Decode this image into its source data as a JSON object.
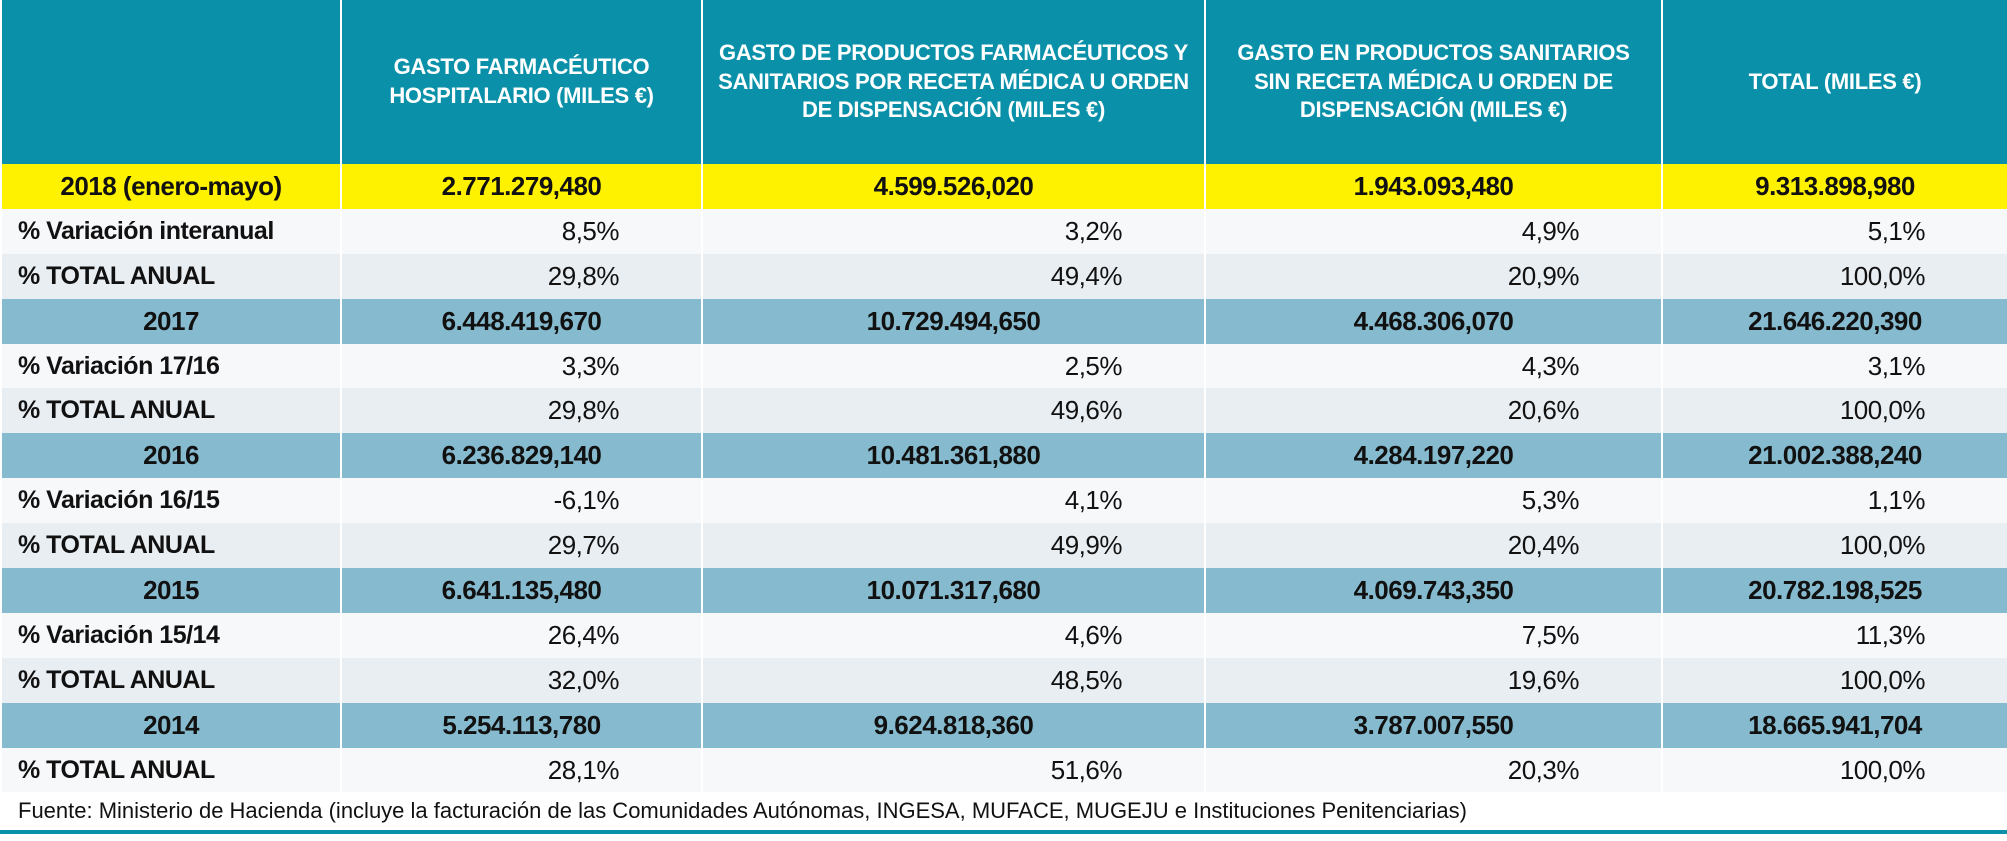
{
  "header": {
    "columns": [
      "GASTO FARMACÉUTICO HOSPITALARIO (MILES €)",
      "GASTO DE PRODUCTOS FARMACÉUTICOS Y SANITARIOS POR RECETA MÉDICA U ORDEN DE DISPENSACIÓN (MILES €)",
      "GASTO EN PRODUCTOS SANITARIOS SIN RECETA MÉDICA U ORDEN DE DISPENSACIÓN (MILES €)",
      "TOTAL (MILES €)"
    ]
  },
  "groups": [
    {
      "label": "2018 (enero-mayo)",
      "values": [
        "2.771.279,480",
        "4.599.526,020",
        "1.943.093,480",
        "9.313.898,980"
      ],
      "rows": [
        {
          "label": "% Variación interanual",
          "values": [
            "8,5%",
            "3,2%",
            "4,9%",
            "5,1%"
          ]
        },
        {
          "label": "% TOTAL ANUAL",
          "values": [
            "29,8%",
            "49,4%",
            "20,9%",
            "100,0%"
          ]
        }
      ]
    },
    {
      "label": "2017",
      "values": [
        "6.448.419,670",
        "10.729.494,650",
        "4.468.306,070",
        "21.646.220,390"
      ],
      "rows": [
        {
          "label": "% Variación 17/16",
          "values": [
            "3,3%",
            "2,5%",
            "4,3%",
            "3,1%"
          ]
        },
        {
          "label": "% TOTAL ANUAL",
          "values": [
            "29,8%",
            "49,6%",
            "20,6%",
            "100,0%"
          ]
        }
      ]
    },
    {
      "label": "2016",
      "values": [
        "6.236.829,140",
        "10.481.361,880",
        "4.284.197,220",
        "21.002.388,240"
      ],
      "rows": [
        {
          "label": "% Variación 16/15",
          "values": [
            "-6,1%",
            "4,1%",
            "5,3%",
            "1,1%"
          ]
        },
        {
          "label": "% TOTAL ANUAL",
          "values": [
            "29,7%",
            "49,9%",
            "20,4%",
            "100,0%"
          ]
        }
      ]
    },
    {
      "label": "2015",
      "values": [
        "6.641.135,480",
        "10.071.317,680",
        "4.069.743,350",
        "20.782.198,525"
      ],
      "rows": [
        {
          "label": "% Variación 15/14",
          "values": [
            "26,4%",
            "4,6%",
            "7,5%",
            "11,3%"
          ]
        },
        {
          "label": "% TOTAL ANUAL",
          "values": [
            "32,0%",
            "48,5%",
            "19,6%",
            "100,0%"
          ]
        }
      ]
    },
    {
      "label": "2014",
      "values": [
        "5.254.113,780",
        "9.624.818,360",
        "3.787.007,550",
        "18.665.941,704"
      ],
      "rows": [
        {
          "label": "% TOTAL ANUAL",
          "values": [
            "28,1%",
            "51,6%",
            "20,3%",
            "100,0%"
          ]
        }
      ]
    }
  ],
  "footer": "Fuente: Ministerio de Hacienda (incluye la facturación de las Comunidades Autónomas, INGESA, MUFACE, MUGEJU e Instituciones Penitenciarias)"
}
